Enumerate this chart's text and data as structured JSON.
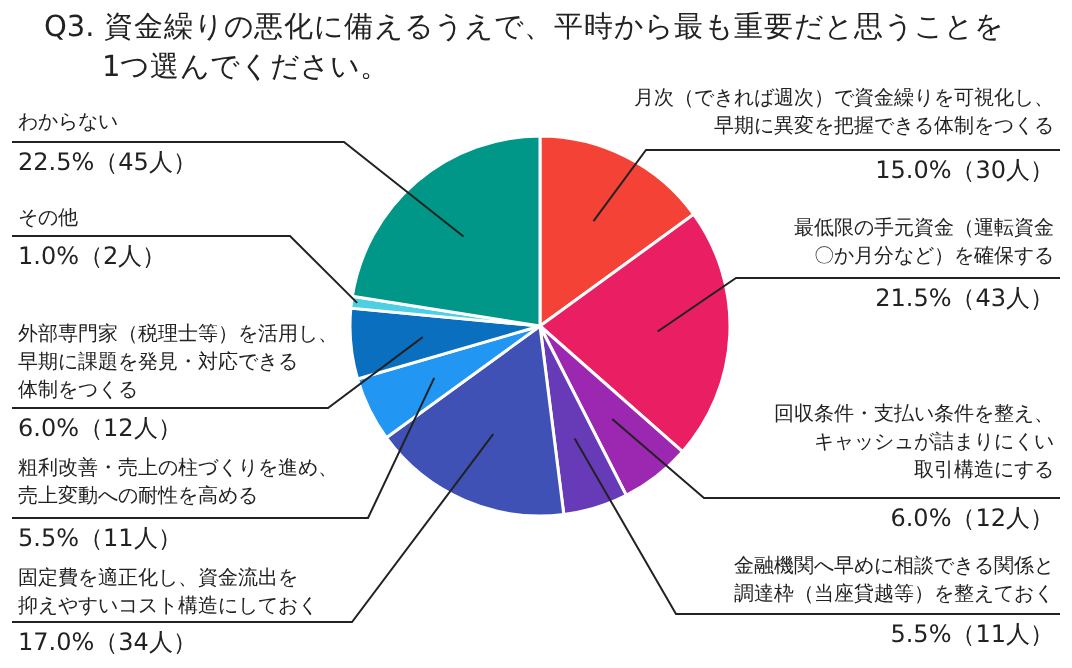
{
  "chart_data": {
    "type": "pie",
    "title": "Q3. 資金繰りの悪化に備えるうえで、平時から最も重要だと思うことを1つ選んでください。",
    "categories": [
      "月次（できれば週次）で資金繰りを可視化し、早期に異変を把握できる体制をつくる",
      "最低限の手元資金（運転資金〇か月分など）を確保する",
      "回収条件・支払い条件を整え、キャッシュが詰まりにくい取引構造にする",
      "金融機関へ早めに相談できる関係と調達枠（当座貸越等）を整えておく",
      "固定費を適正化し、資金流出を抑えやすいコスト構造にしておく",
      "粗利改善・売上の柱づくりを進め、売上変動への耐性を高める",
      "外部専門家（税理士等）を活用し、早期に課題を発見・対応できる体制をつくる",
      "その他",
      "わからない"
    ],
    "values": [
      15.0,
      21.5,
      6.0,
      5.5,
      17.0,
      5.5,
      6.0,
      1.0,
      22.5
    ],
    "value_labels": [
      "15.0%（30人）",
      "21.5%（43人）",
      "6.0%（12人）",
      "5.5%（11人）",
      "17.0%（34人）",
      "5.5%（11人）",
      "6.0%（12人）",
      "1.0%（2人）",
      "22.5%（45人）"
    ],
    "colors": [
      "#f44336",
      "#e91e63",
      "#9c27b0",
      "#673ab7",
      "#3f51b5",
      "#2196f3",
      "#0b6fc0",
      "#4dd0e1",
      "#009688"
    ]
  }
}
